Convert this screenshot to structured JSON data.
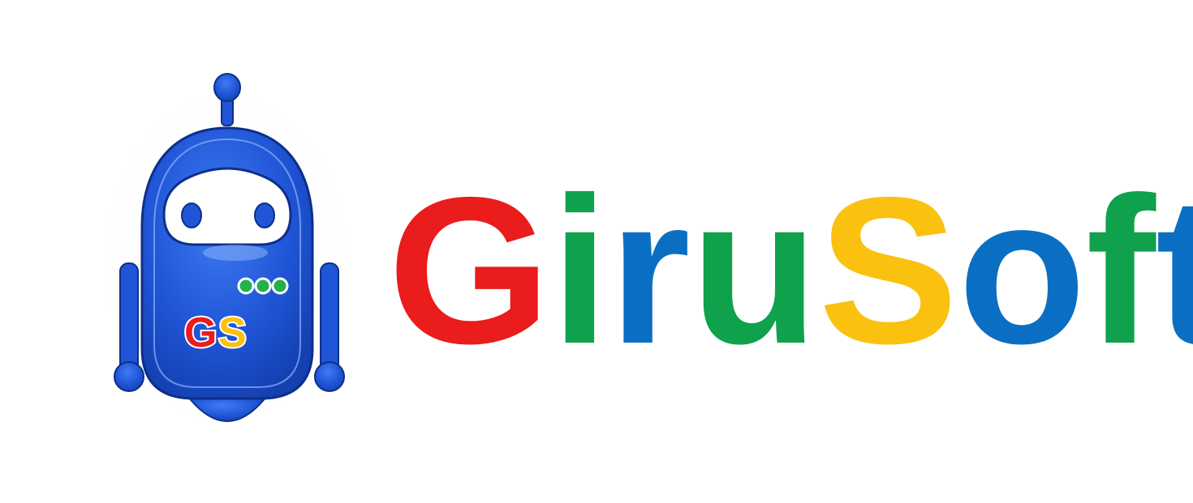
{
  "brand": {
    "name": "GiruSoft",
    "letters": [
      {
        "char": "G",
        "color": "red"
      },
      {
        "char": "i",
        "color": "green"
      },
      {
        "char": "r",
        "color": "blue"
      },
      {
        "char": "u",
        "color": "green"
      },
      {
        "char": "S",
        "color": "yellow"
      },
      {
        "char": "o",
        "color": "blue"
      },
      {
        "char": "f",
        "color": "green"
      },
      {
        "char": "t",
        "color": "blue"
      }
    ]
  },
  "mascot": {
    "icon": "robot-mascot-icon",
    "badge_text": "GS",
    "badge_letters": [
      {
        "char": "G",
        "color": "red"
      },
      {
        "char": "S",
        "color": "yellow"
      }
    ],
    "body_color": "#1f55d6",
    "indicator_color": "#22b14c"
  },
  "colors": {
    "red": "#ea1c1c",
    "green": "#0fa14c",
    "blue": "#0a6fc2",
    "yellow": "#fbc110",
    "background": "#ffffff"
  }
}
